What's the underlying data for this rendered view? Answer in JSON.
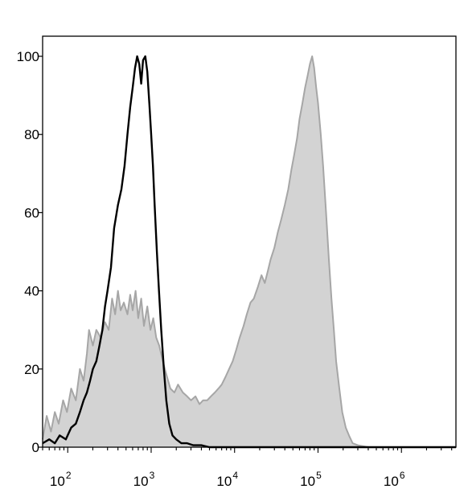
{
  "chart_data": {
    "type": "area",
    "title": "",
    "xlabel": "",
    "ylabel": "",
    "x_scale": "log",
    "xlim": [
      50,
      4500000
    ],
    "ylim": [
      0,
      100
    ],
    "x_ticks": [
      {
        "value": 100,
        "base": "10",
        "exp": "2"
      },
      {
        "value": 1000,
        "base": "10",
        "exp": "3"
      },
      {
        "value": 10000,
        "base": "10",
        "exp": "4"
      },
      {
        "value": 100000,
        "base": "10",
        "exp": "5"
      },
      {
        "value": 1000000,
        "base": "10",
        "exp": "6"
      }
    ],
    "y_ticks": [
      {
        "value": 0,
        "label": "0"
      },
      {
        "value": 20,
        "label": "20"
      },
      {
        "value": 40,
        "label": "40"
      },
      {
        "value": 60,
        "label": "60"
      },
      {
        "value": 80,
        "label": "80"
      },
      {
        "value": 100,
        "label": "100"
      }
    ],
    "grid": false,
    "legend": "none",
    "series": [
      {
        "style": "filled",
        "fill_color": "#d3d3d3",
        "line_color": "#a6a6a6",
        "points": [
          [
            50,
            2
          ],
          [
            56,
            8
          ],
          [
            63,
            4
          ],
          [
            70,
            9
          ],
          [
            78,
            6
          ],
          [
            88,
            12
          ],
          [
            98,
            9
          ],
          [
            110,
            15
          ],
          [
            125,
            12
          ],
          [
            140,
            20
          ],
          [
            155,
            17
          ],
          [
            170,
            24
          ],
          [
            180,
            30
          ],
          [
            200,
            26
          ],
          [
            220,
            30
          ],
          [
            250,
            28
          ],
          [
            280,
            32
          ],
          [
            310,
            30
          ],
          [
            340,
            38
          ],
          [
            370,
            34
          ],
          [
            400,
            40
          ],
          [
            430,
            35
          ],
          [
            470,
            37
          ],
          [
            520,
            34
          ],
          [
            560,
            39
          ],
          [
            600,
            35
          ],
          [
            650,
            40
          ],
          [
            700,
            33
          ],
          [
            760,
            38
          ],
          [
            820,
            31
          ],
          [
            900,
            36
          ],
          [
            980,
            30
          ],
          [
            1060,
            33
          ],
          [
            1150,
            28
          ],
          [
            1250,
            26
          ],
          [
            1380,
            22
          ],
          [
            1500,
            19
          ],
          [
            1700,
            15
          ],
          [
            1900,
            14
          ],
          [
            2100,
            16
          ],
          [
            2400,
            14
          ],
          [
            2700,
            13
          ],
          [
            3000,
            12
          ],
          [
            3400,
            13
          ],
          [
            3800,
            11
          ],
          [
            4200,
            12
          ],
          [
            4700,
            12
          ],
          [
            5200,
            13
          ],
          [
            5800,
            14
          ],
          [
            6400,
            15
          ],
          [
            7000,
            16
          ],
          [
            7800,
            18
          ],
          [
            8600,
            20
          ],
          [
            9500,
            22
          ],
          [
            10500,
            25
          ],
          [
            11500,
            28
          ],
          [
            12800,
            31
          ],
          [
            14000,
            34
          ],
          [
            15500,
            37
          ],
          [
            17000,
            38
          ],
          [
            19000,
            41
          ],
          [
            21000,
            44
          ],
          [
            23000,
            42
          ],
          [
            25000,
            45
          ],
          [
            27000,
            48
          ],
          [
            30000,
            51
          ],
          [
            33000,
            55
          ],
          [
            36000,
            58
          ],
          [
            40000,
            62
          ],
          [
            44000,
            66
          ],
          [
            48000,
            71
          ],
          [
            52000,
            75
          ],
          [
            56000,
            79
          ],
          [
            60000,
            84
          ],
          [
            65000,
            88
          ],
          [
            70000,
            92
          ],
          [
            75000,
            95
          ],
          [
            80000,
            98
          ],
          [
            85000,
            100
          ],
          [
            90000,
            97
          ],
          [
            95000,
            92
          ],
          [
            100000,
            88
          ],
          [
            108000,
            80
          ],
          [
            115000,
            72
          ],
          [
            125000,
            60
          ],
          [
            135000,
            48
          ],
          [
            145000,
            38
          ],
          [
            155000,
            30
          ],
          [
            165000,
            22
          ],
          [
            180000,
            15
          ],
          [
            195000,
            9
          ],
          [
            215000,
            5
          ],
          [
            235000,
            3
          ],
          [
            260000,
            1
          ],
          [
            300000,
            0.5
          ],
          [
            400000,
            0
          ],
          [
            1000000,
            0
          ],
          [
            4500000,
            0
          ]
        ]
      },
      {
        "style": "line",
        "line_color": "#000000",
        "points": [
          [
            50,
            1
          ],
          [
            60,
            2
          ],
          [
            70,
            1
          ],
          [
            80,
            3
          ],
          [
            95,
            2
          ],
          [
            110,
            5
          ],
          [
            125,
            6
          ],
          [
            140,
            9
          ],
          [
            155,
            12
          ],
          [
            170,
            14
          ],
          [
            185,
            17
          ],
          [
            200,
            20
          ],
          [
            220,
            22
          ],
          [
            240,
            26
          ],
          [
            260,
            30
          ],
          [
            280,
            36
          ],
          [
            300,
            40
          ],
          [
            330,
            46
          ],
          [
            360,
            56
          ],
          [
            400,
            62
          ],
          [
            440,
            66
          ],
          [
            480,
            72
          ],
          [
            520,
            80
          ],
          [
            560,
            87
          ],
          [
            600,
            92
          ],
          [
            640,
            97
          ],
          [
            680,
            100
          ],
          [
            720,
            98
          ],
          [
            760,
            93
          ],
          [
            800,
            99
          ],
          [
            850,
            100
          ],
          [
            900,
            96
          ],
          [
            950,
            88
          ],
          [
            1000,
            80
          ],
          [
            1050,
            72
          ],
          [
            1100,
            62
          ],
          [
            1170,
            50
          ],
          [
            1240,
            40
          ],
          [
            1320,
            30
          ],
          [
            1420,
            20
          ],
          [
            1520,
            12
          ],
          [
            1650,
            6
          ],
          [
            1800,
            3
          ],
          [
            2000,
            2
          ],
          [
            2300,
            1
          ],
          [
            2700,
            1
          ],
          [
            3200,
            0.5
          ],
          [
            4000,
            0.5
          ],
          [
            5000,
            0
          ],
          [
            8000,
            0
          ],
          [
            20000,
            0
          ],
          [
            100000,
            0
          ],
          [
            1000000,
            0
          ],
          [
            4500000,
            0
          ]
        ]
      }
    ]
  }
}
